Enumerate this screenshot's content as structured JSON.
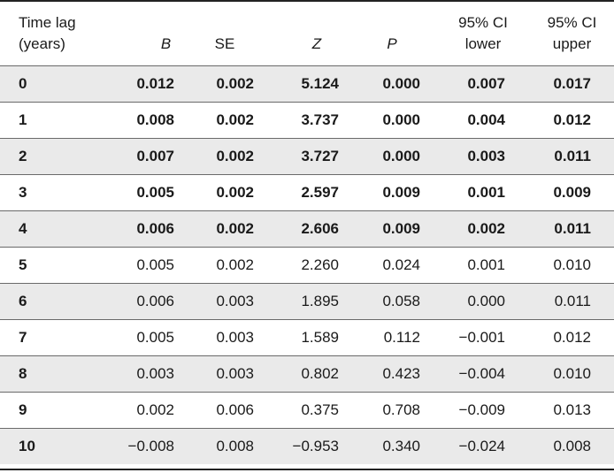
{
  "table": {
    "headers": {
      "lag_line1": "Time lag",
      "lag_line2": "(years)",
      "b": "B",
      "se": "SE",
      "z": "Z",
      "p": "P",
      "ci_lower_line1": "95% CI",
      "ci_lower_line2": "lower",
      "ci_upper_line1": "95% CI",
      "ci_upper_line2": "upper"
    },
    "rows": [
      {
        "lag": "0",
        "b": "0.012",
        "se": "0.002",
        "z": "5.124",
        "p": "0.000",
        "lower": "0.007",
        "upper": "0.017",
        "significant": true
      },
      {
        "lag": "1",
        "b": "0.008",
        "se": "0.002",
        "z": "3.737",
        "p": "0.000",
        "lower": "0.004",
        "upper": "0.012",
        "significant": true
      },
      {
        "lag": "2",
        "b": "0.007",
        "se": "0.002",
        "z": "3.727",
        "p": "0.000",
        "lower": "0.003",
        "upper": "0.011",
        "significant": true
      },
      {
        "lag": "3",
        "b": "0.005",
        "se": "0.002",
        "z": "2.597",
        "p": "0.009",
        "lower": "0.001",
        "upper": "0.009",
        "significant": true
      },
      {
        "lag": "4",
        "b": "0.006",
        "se": "0.002",
        "z": "2.606",
        "p": "0.009",
        "lower": "0.002",
        "upper": "0.011",
        "significant": true
      },
      {
        "lag": "5",
        "b": "0.005",
        "se": "0.002",
        "z": "2.260",
        "p": "0.024",
        "lower": "0.001",
        "upper": "0.010",
        "significant": false
      },
      {
        "lag": "6",
        "b": "0.006",
        "se": "0.003",
        "z": "1.895",
        "p": "0.058",
        "lower": "0.000",
        "upper": "0.011",
        "significant": false
      },
      {
        "lag": "7",
        "b": "0.005",
        "se": "0.003",
        "z": "1.589",
        "p": "0.112",
        "lower": "−0.001",
        "upper": "0.012",
        "significant": false
      },
      {
        "lag": "8",
        "b": "0.003",
        "se": "0.003",
        "z": "0.802",
        "p": "0.423",
        "lower": "−0.004",
        "upper": "0.010",
        "significant": false
      },
      {
        "lag": "9",
        "b": "0.002",
        "se": "0.006",
        "z": "0.375",
        "p": "0.708",
        "lower": "−0.009",
        "upper": "0.013",
        "significant": false
      },
      {
        "lag": "10",
        "b": "−0.008",
        "se": "0.008",
        "z": "−0.953",
        "p": "0.340",
        "lower": "−0.024",
        "upper": "0.008",
        "significant": false
      }
    ]
  }
}
